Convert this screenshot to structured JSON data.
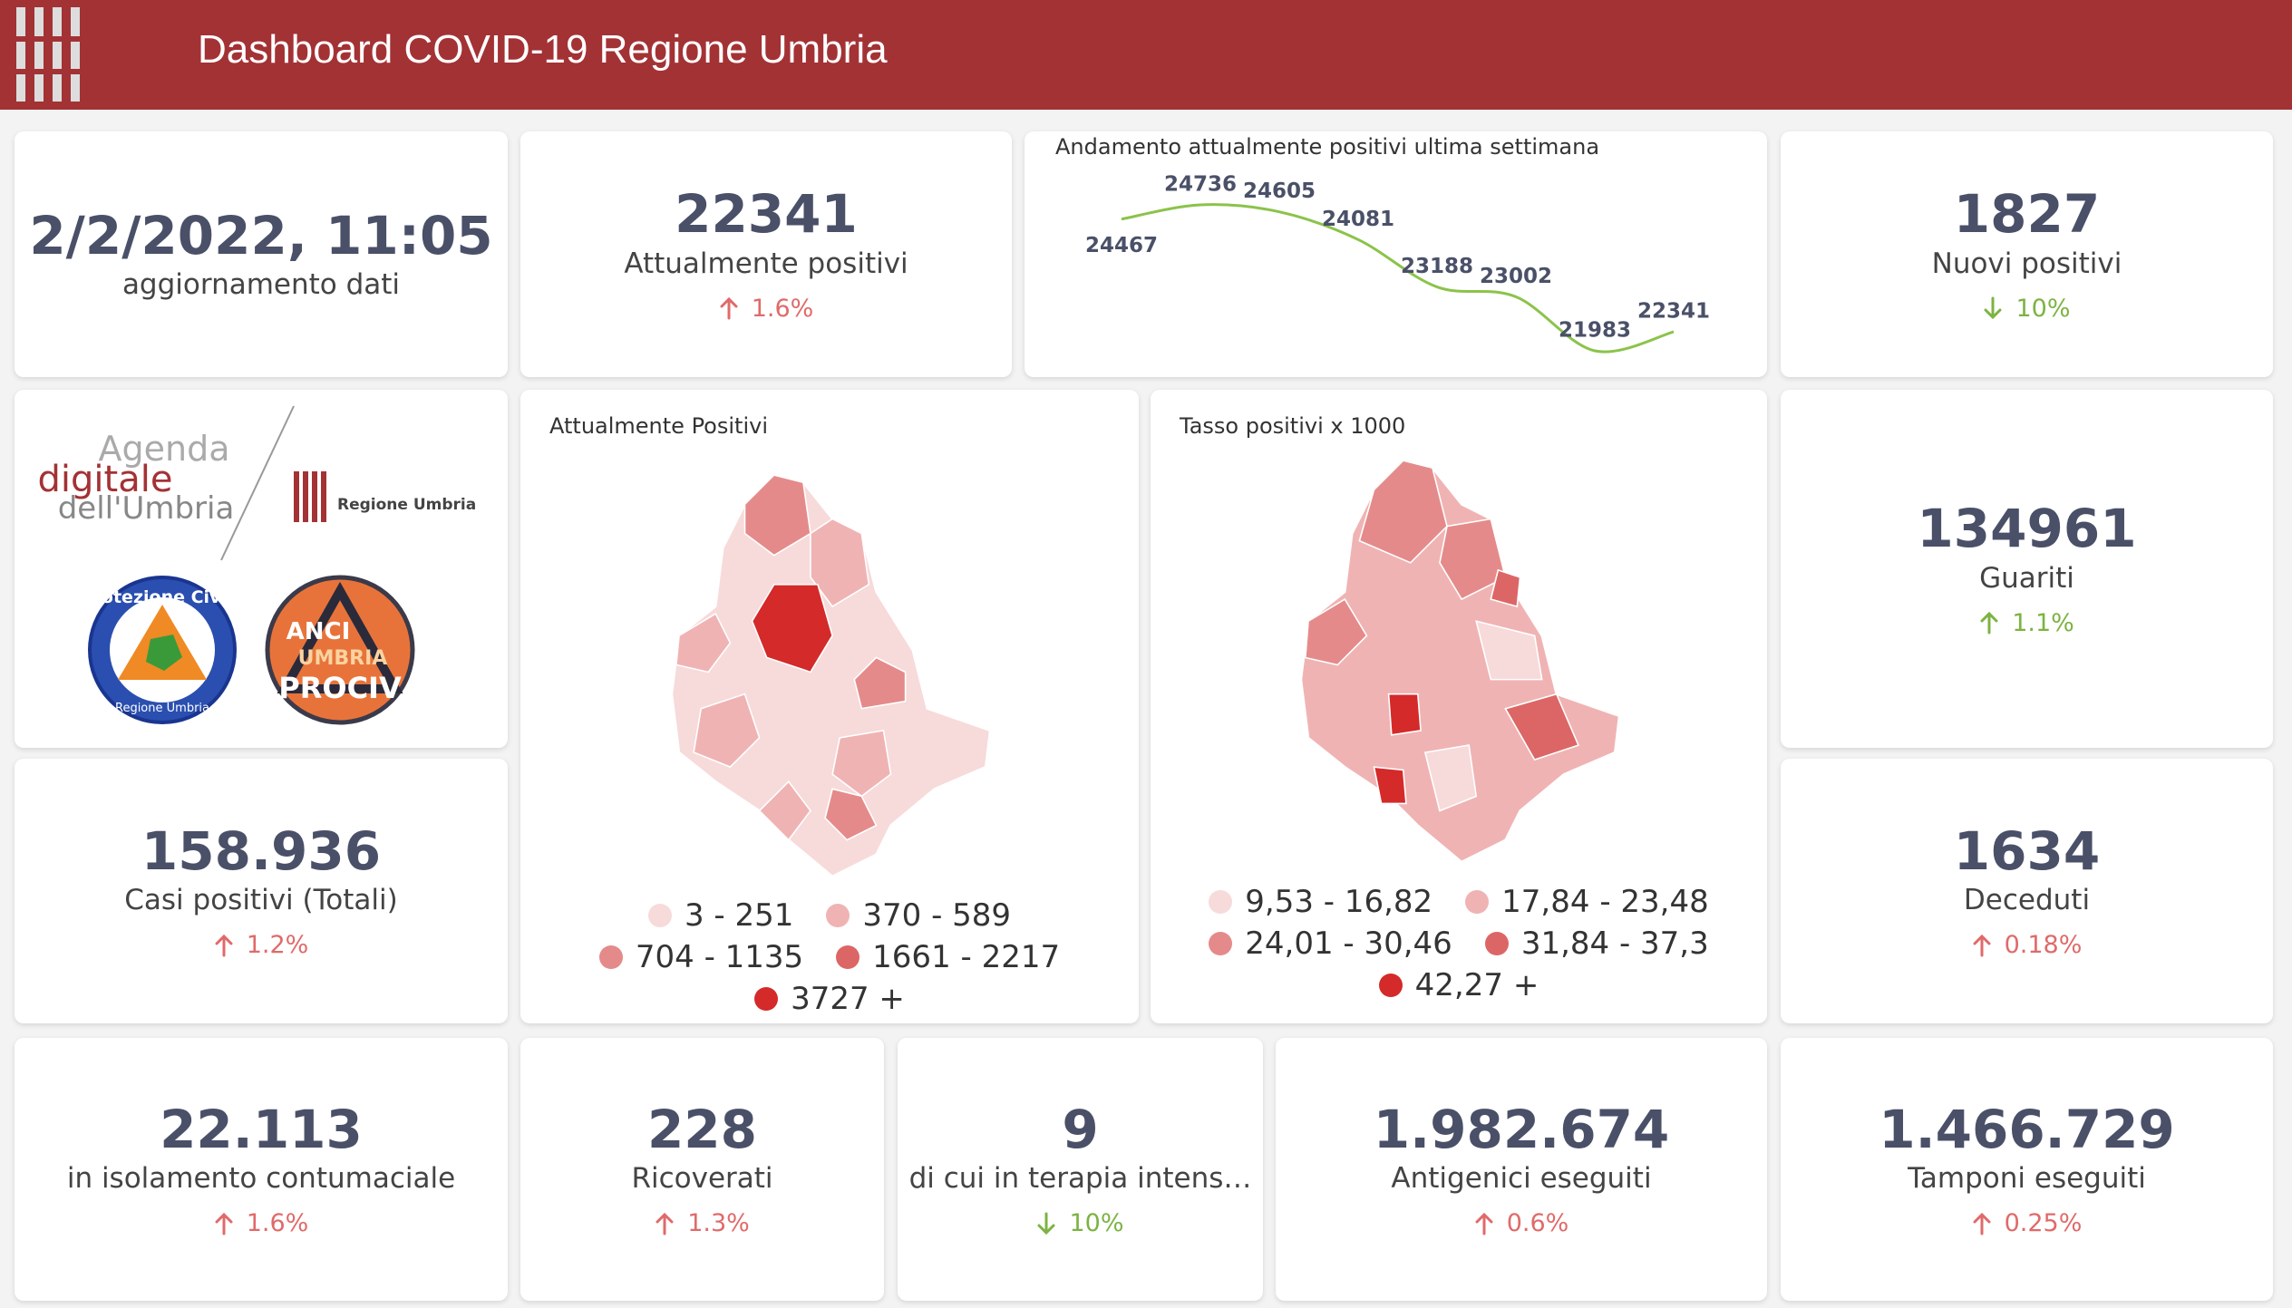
{
  "header": {
    "title": "Dashboard COVID-19 Regione Umbria"
  },
  "kpis": [
    {
      "value": "2/2/2022, 11:05",
      "label": "aggiornamento dati"
    },
    {
      "value": "22341",
      "label": "Attualmente positivi",
      "change": "1.6%",
      "trend": "up",
      "trend_color": "#e06a6a"
    },
    {
      "value": "1827",
      "label": "Nuovi positivi",
      "change": "10%",
      "trend": "down",
      "trend_color": "#7cb342"
    },
    {
      "value": "134961",
      "label": "Guariti",
      "change": "1.1%",
      "trend": "up",
      "trend_color": "#7cb342"
    },
    {
      "value": "158.936",
      "label": "Casi positivi (Totali)",
      "change": "1.2%",
      "trend": "up",
      "trend_color": "#e06a6a"
    },
    {
      "value": "1634",
      "label": "Deceduti",
      "change": "0.18%",
      "trend": "up",
      "trend_color": "#e06a6a"
    },
    {
      "value": "22.113",
      "label": "in isolamento contumaciale",
      "change": "1.6%",
      "trend": "up",
      "trend_color": "#e06a6a"
    },
    {
      "value": "228",
      "label": "Ricoverati",
      "change": "1.3%",
      "trend": "up",
      "trend_color": "#e06a6a"
    },
    {
      "value": "9",
      "label": "di cui in terapia intens…",
      "change": "10%",
      "trend": "down",
      "trend_color": "#7cb342"
    },
    {
      "value": "1.982.674",
      "label": "Antigenici eseguiti",
      "change": "0.6%",
      "trend": "up",
      "trend_color": "#e06a6a"
    },
    {
      "value": "1.466.729",
      "label": "Tamponi eseguiti",
      "change": "0.25%",
      "trend": "up",
      "trend_color": "#e06a6a"
    }
  ],
  "chart_data": {
    "type": "line",
    "title": "Andamento attualmente positivi ultima settimana",
    "values": [
      24467,
      24736,
      24605,
      24081,
      23188,
      23002,
      21983,
      22341
    ],
    "color": "#8bc34a"
  },
  "maps": [
    {
      "title": "Attualmente Positivi",
      "legend": [
        {
          "label": "3 - 251",
          "color": "#f7dada"
        },
        {
          "label": "370 - 589",
          "color": "#f0b3b3"
        },
        {
          "label": "704 - 1135",
          "color": "#e58a8a"
        },
        {
          "label": "1661 - 2217",
          "color": "#dc6666"
        },
        {
          "label": "3727 +",
          "color": "#d42a2a"
        }
      ]
    },
    {
      "title": "Tasso positivi x 1000",
      "legend": [
        {
          "label": "9,53 - 16,82",
          "color": "#f7dada"
        },
        {
          "label": "17,84 - 23,48",
          "color": "#f0b3b3"
        },
        {
          "label": "24,01 - 30,46",
          "color": "#e58a8a"
        },
        {
          "label": "31,84 - 37,3",
          "color": "#dc6666"
        },
        {
          "label": "42,27 +",
          "color": "#d42a2a"
        }
      ]
    }
  ],
  "logos": {
    "agenda_1": "Agenda",
    "agenda_2": "digitale",
    "agenda_3": "dell'Umbria",
    "regione": "Regione Umbria",
    "protezione": "Protezione Civile",
    "protezione_sub": "Regione Umbria",
    "anci_1": "ANCI",
    "anci_2": "UMBRIA",
    "anci_3": "PROCIV"
  }
}
